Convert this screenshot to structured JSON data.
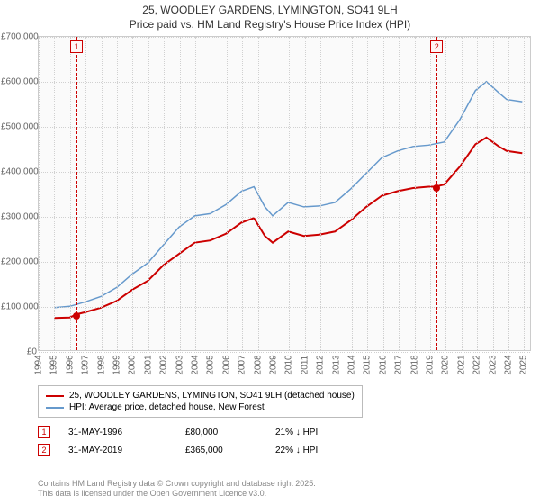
{
  "title": {
    "line1": "25, WOODLEY GARDENS, LYMINGTON, SO41 9LH",
    "line2": "Price paid vs. HM Land Registry's House Price Index (HPI)"
  },
  "chart": {
    "type": "line",
    "background_color": "#fafafa",
    "grid_color": "#d0d0d0",
    "border_color": "#cccccc",
    "xlim": [
      1994,
      2025.5
    ],
    "ylim": [
      0,
      700000
    ],
    "ytick_step": 100000,
    "yticks": [
      0,
      100000,
      200000,
      300000,
      400000,
      500000,
      600000,
      700000
    ],
    "ylabels": [
      "£0",
      "£100,000",
      "£200,000",
      "£300,000",
      "£400,000",
      "£500,000",
      "£600,000",
      "£700,000"
    ],
    "xticks": [
      1994,
      1995,
      1996,
      1997,
      1998,
      1999,
      2000,
      2001,
      2002,
      2003,
      2004,
      2005,
      2006,
      2007,
      2008,
      2009,
      2010,
      2011,
      2012,
      2013,
      2014,
      2015,
      2016,
      2017,
      2018,
      2019,
      2020,
      2021,
      2022,
      2023,
      2024,
      2025
    ],
    "label_fontsize": 10,
    "title_fontsize": 12,
    "series": [
      {
        "name": "price_paid",
        "label": "25, WOODLEY GARDENS, LYMINGTON, SO41 9LH (detached house)",
        "color": "#cc0000",
        "line_width": 2,
        "data": [
          [
            1995,
            72000
          ],
          [
            1996,
            73000
          ],
          [
            1996.42,
            80000
          ],
          [
            1997,
            85000
          ],
          [
            1998,
            95000
          ],
          [
            1999,
            110000
          ],
          [
            2000,
            135000
          ],
          [
            2001,
            155000
          ],
          [
            2002,
            190000
          ],
          [
            2003,
            215000
          ],
          [
            2004,
            240000
          ],
          [
            2005,
            245000
          ],
          [
            2006,
            260000
          ],
          [
            2007,
            285000
          ],
          [
            2007.8,
            295000
          ],
          [
            2008.5,
            255000
          ],
          [
            2009,
            240000
          ],
          [
            2010,
            265000
          ],
          [
            2011,
            255000
          ],
          [
            2012,
            258000
          ],
          [
            2013,
            265000
          ],
          [
            2014,
            290000
          ],
          [
            2015,
            320000
          ],
          [
            2016,
            345000
          ],
          [
            2017,
            355000
          ],
          [
            2018,
            362000
          ],
          [
            2019,
            365000
          ],
          [
            2019.42,
            365000
          ],
          [
            2020,
            370000
          ],
          [
            2021,
            410000
          ],
          [
            2022,
            460000
          ],
          [
            2022.7,
            475000
          ],
          [
            2023.5,
            455000
          ],
          [
            2024,
            445000
          ],
          [
            2025,
            440000
          ]
        ]
      },
      {
        "name": "hpi",
        "label": "HPI: Average price, detached house, New Forest",
        "color": "#6699cc",
        "line_width": 1.5,
        "data": [
          [
            1995,
            95000
          ],
          [
            1996,
            98000
          ],
          [
            1997,
            108000
          ],
          [
            1998,
            120000
          ],
          [
            1999,
            140000
          ],
          [
            2000,
            170000
          ],
          [
            2001,
            195000
          ],
          [
            2002,
            235000
          ],
          [
            2003,
            275000
          ],
          [
            2004,
            300000
          ],
          [
            2005,
            305000
          ],
          [
            2006,
            325000
          ],
          [
            2007,
            355000
          ],
          [
            2007.8,
            365000
          ],
          [
            2008.5,
            320000
          ],
          [
            2009,
            300000
          ],
          [
            2010,
            330000
          ],
          [
            2011,
            320000
          ],
          [
            2012,
            322000
          ],
          [
            2013,
            330000
          ],
          [
            2014,
            360000
          ],
          [
            2015,
            395000
          ],
          [
            2016,
            430000
          ],
          [
            2017,
            445000
          ],
          [
            2018,
            455000
          ],
          [
            2019,
            458000
          ],
          [
            2020,
            465000
          ],
          [
            2021,
            515000
          ],
          [
            2022,
            580000
          ],
          [
            2022.7,
            600000
          ],
          [
            2023.5,
            575000
          ],
          [
            2024,
            560000
          ],
          [
            2025,
            555000
          ]
        ]
      }
    ],
    "markers": [
      {
        "id": "1",
        "x": 1996.42,
        "y": 80000,
        "date": "31-MAY-1996",
        "price": "£80,000",
        "note": "21% ↓ HPI",
        "color": "#cc0000"
      },
      {
        "id": "2",
        "x": 2019.42,
        "y": 365000,
        "date": "31-MAY-2019",
        "price": "£365,000",
        "note": "22% ↓ HPI",
        "color": "#cc0000"
      }
    ]
  },
  "legend": {
    "rows": [
      {
        "color": "#cc0000",
        "label": "25, WOODLEY GARDENS, LYMINGTON, SO41 9LH (detached house)"
      },
      {
        "color": "#6699cc",
        "label": "HPI: Average price, detached house, New Forest"
      }
    ]
  },
  "footer": {
    "line1": "Contains HM Land Registry data © Crown copyright and database right 2025.",
    "line2": "This data is licensed under the Open Government Licence v3.0."
  }
}
